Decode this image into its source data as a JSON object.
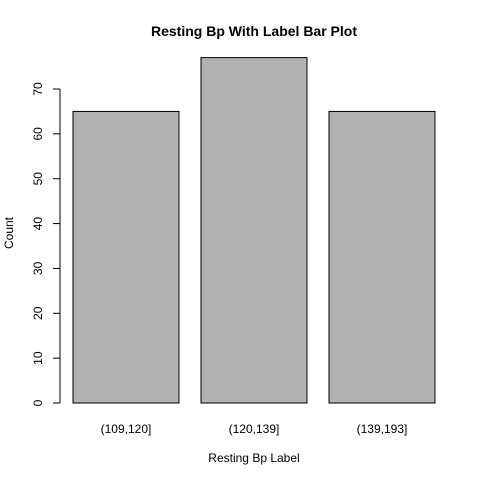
{
  "chart_data": {
    "type": "bar",
    "title": "Resting Bp With Label Bar Plot",
    "xlabel": "Resting Bp Label",
    "ylabel": "Count",
    "categories": [
      "(109,120]",
      "(120,139]",
      "(139,193]"
    ],
    "values": [
      65,
      77,
      65
    ],
    "yticks": [
      0,
      10,
      20,
      30,
      40,
      50,
      60,
      70
    ],
    "ylim": [
      0,
      80
    ],
    "grid": false,
    "legend": "none",
    "colors": {
      "bar_fill": "#b2b2b2",
      "bar_stroke": "#000000",
      "axis": "#000000"
    }
  }
}
